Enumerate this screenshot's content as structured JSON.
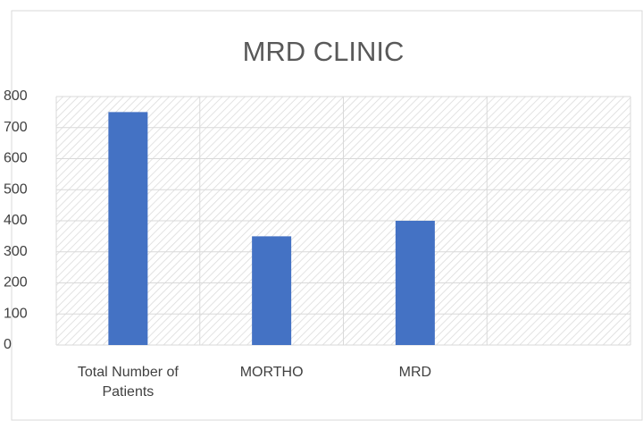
{
  "chart_data": {
    "type": "bar",
    "title": "MRD CLINIC",
    "categories": [
      "Total Number of Patients",
      "MORTHO",
      "MRD",
      null
    ],
    "values": [
      750,
      350,
      400,
      null
    ],
    "color": "#4472c4",
    "ylim": [
      0,
      800
    ],
    "yticks": [
      0,
      100,
      200,
      300,
      400,
      500,
      600,
      700,
      800
    ],
    "grid": true
  }
}
